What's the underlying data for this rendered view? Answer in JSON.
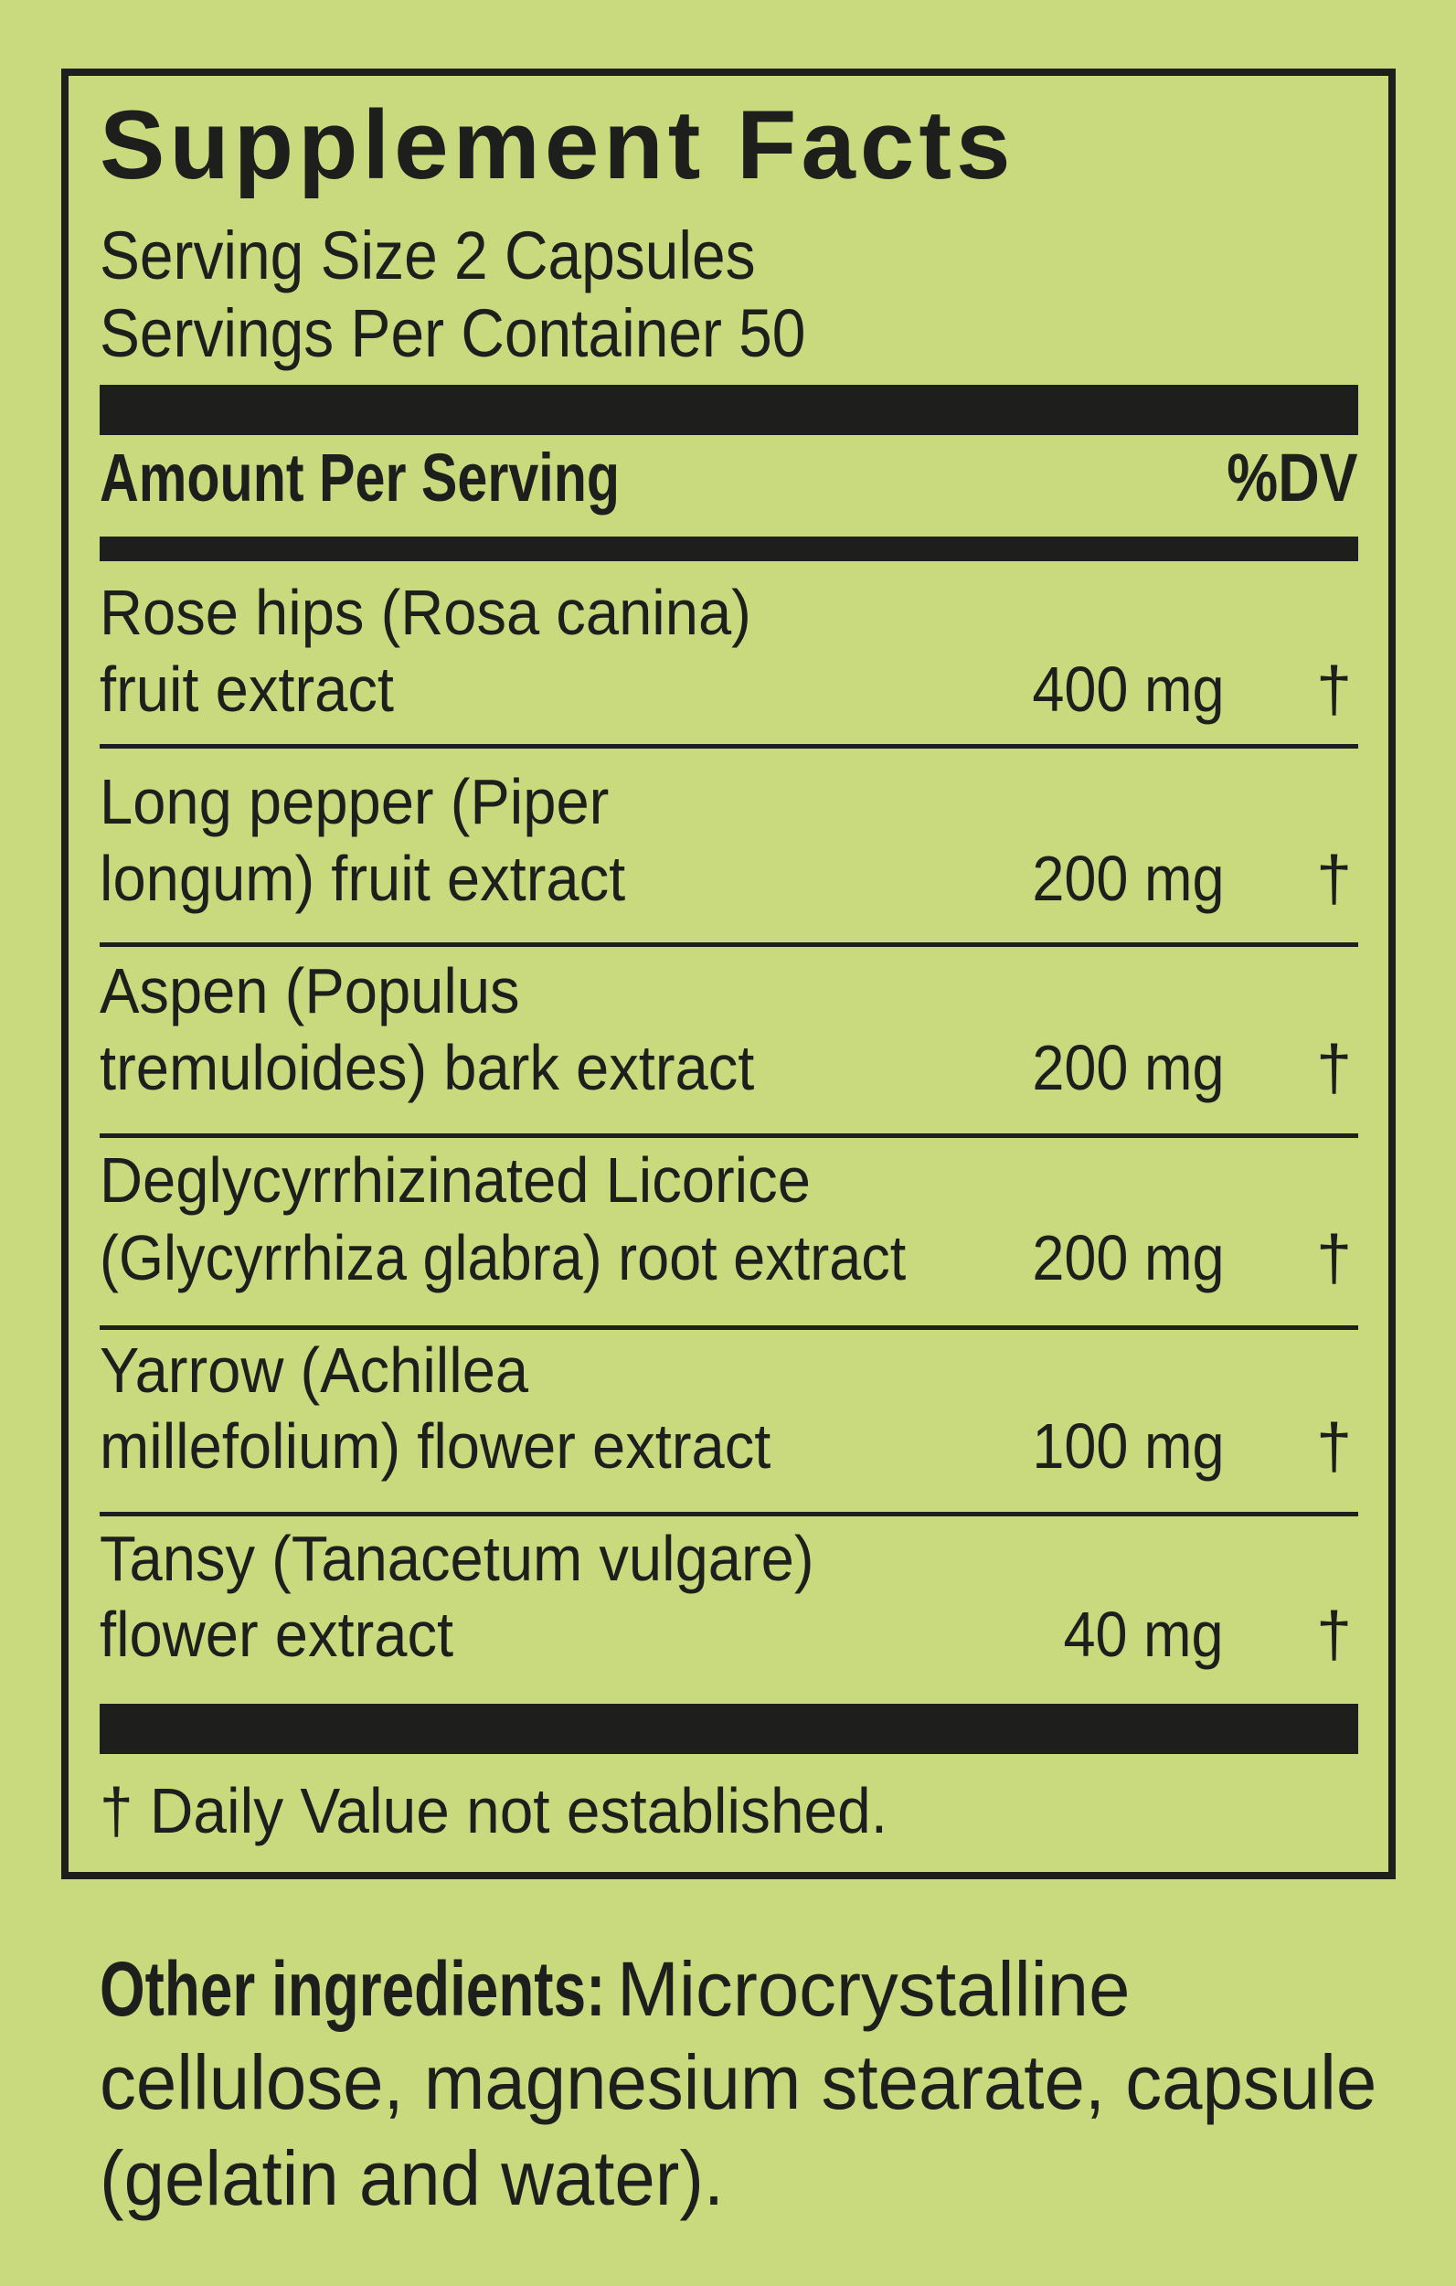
{
  "label": {
    "title": "Supplement Facts",
    "serving_size": "Serving Size 2 Capsules",
    "servings_per_container": "Servings Per Container 50",
    "header_amount": "Amount Per Serving",
    "header_dv": "%DV",
    "rows": [
      {
        "line1": "Rose hips (Rosa canina)",
        "line2": "fruit extract",
        "amount": "400 mg",
        "dv": "†"
      },
      {
        "line1": "Long pepper (Piper",
        "line2": "longum) fruit extract",
        "amount": "200 mg",
        "dv": "†"
      },
      {
        "line1": "Aspen (Populus",
        "line2": "tremuloides) bark extract",
        "amount": "200 mg",
        "dv": "†"
      },
      {
        "line1": "Deglycyrrhizinated Licorice",
        "line2": "(Glycyrrhiza glabra) root extract",
        "amount": "200 mg",
        "dv": "†"
      },
      {
        "line1": "Yarrow (Achillea",
        "line2": "millefolium) flower extract",
        "amount": "100 mg",
        "dv": "†"
      },
      {
        "line1": "Tansy (Tanacetum vulgare)",
        "line2": "flower extract",
        "amount": "40 mg",
        "dv": "†"
      }
    ],
    "footnote": "† Daily Value not established."
  },
  "other_ingredients": {
    "label": "Other ingredients:",
    "lines": [
      "Microcrystalline",
      "cellulose, magnesium stearate, capsule",
      "(gelatin and water)."
    ]
  },
  "colors": {
    "background": "#c8da7d",
    "ink": "#1e1e1c"
  }
}
